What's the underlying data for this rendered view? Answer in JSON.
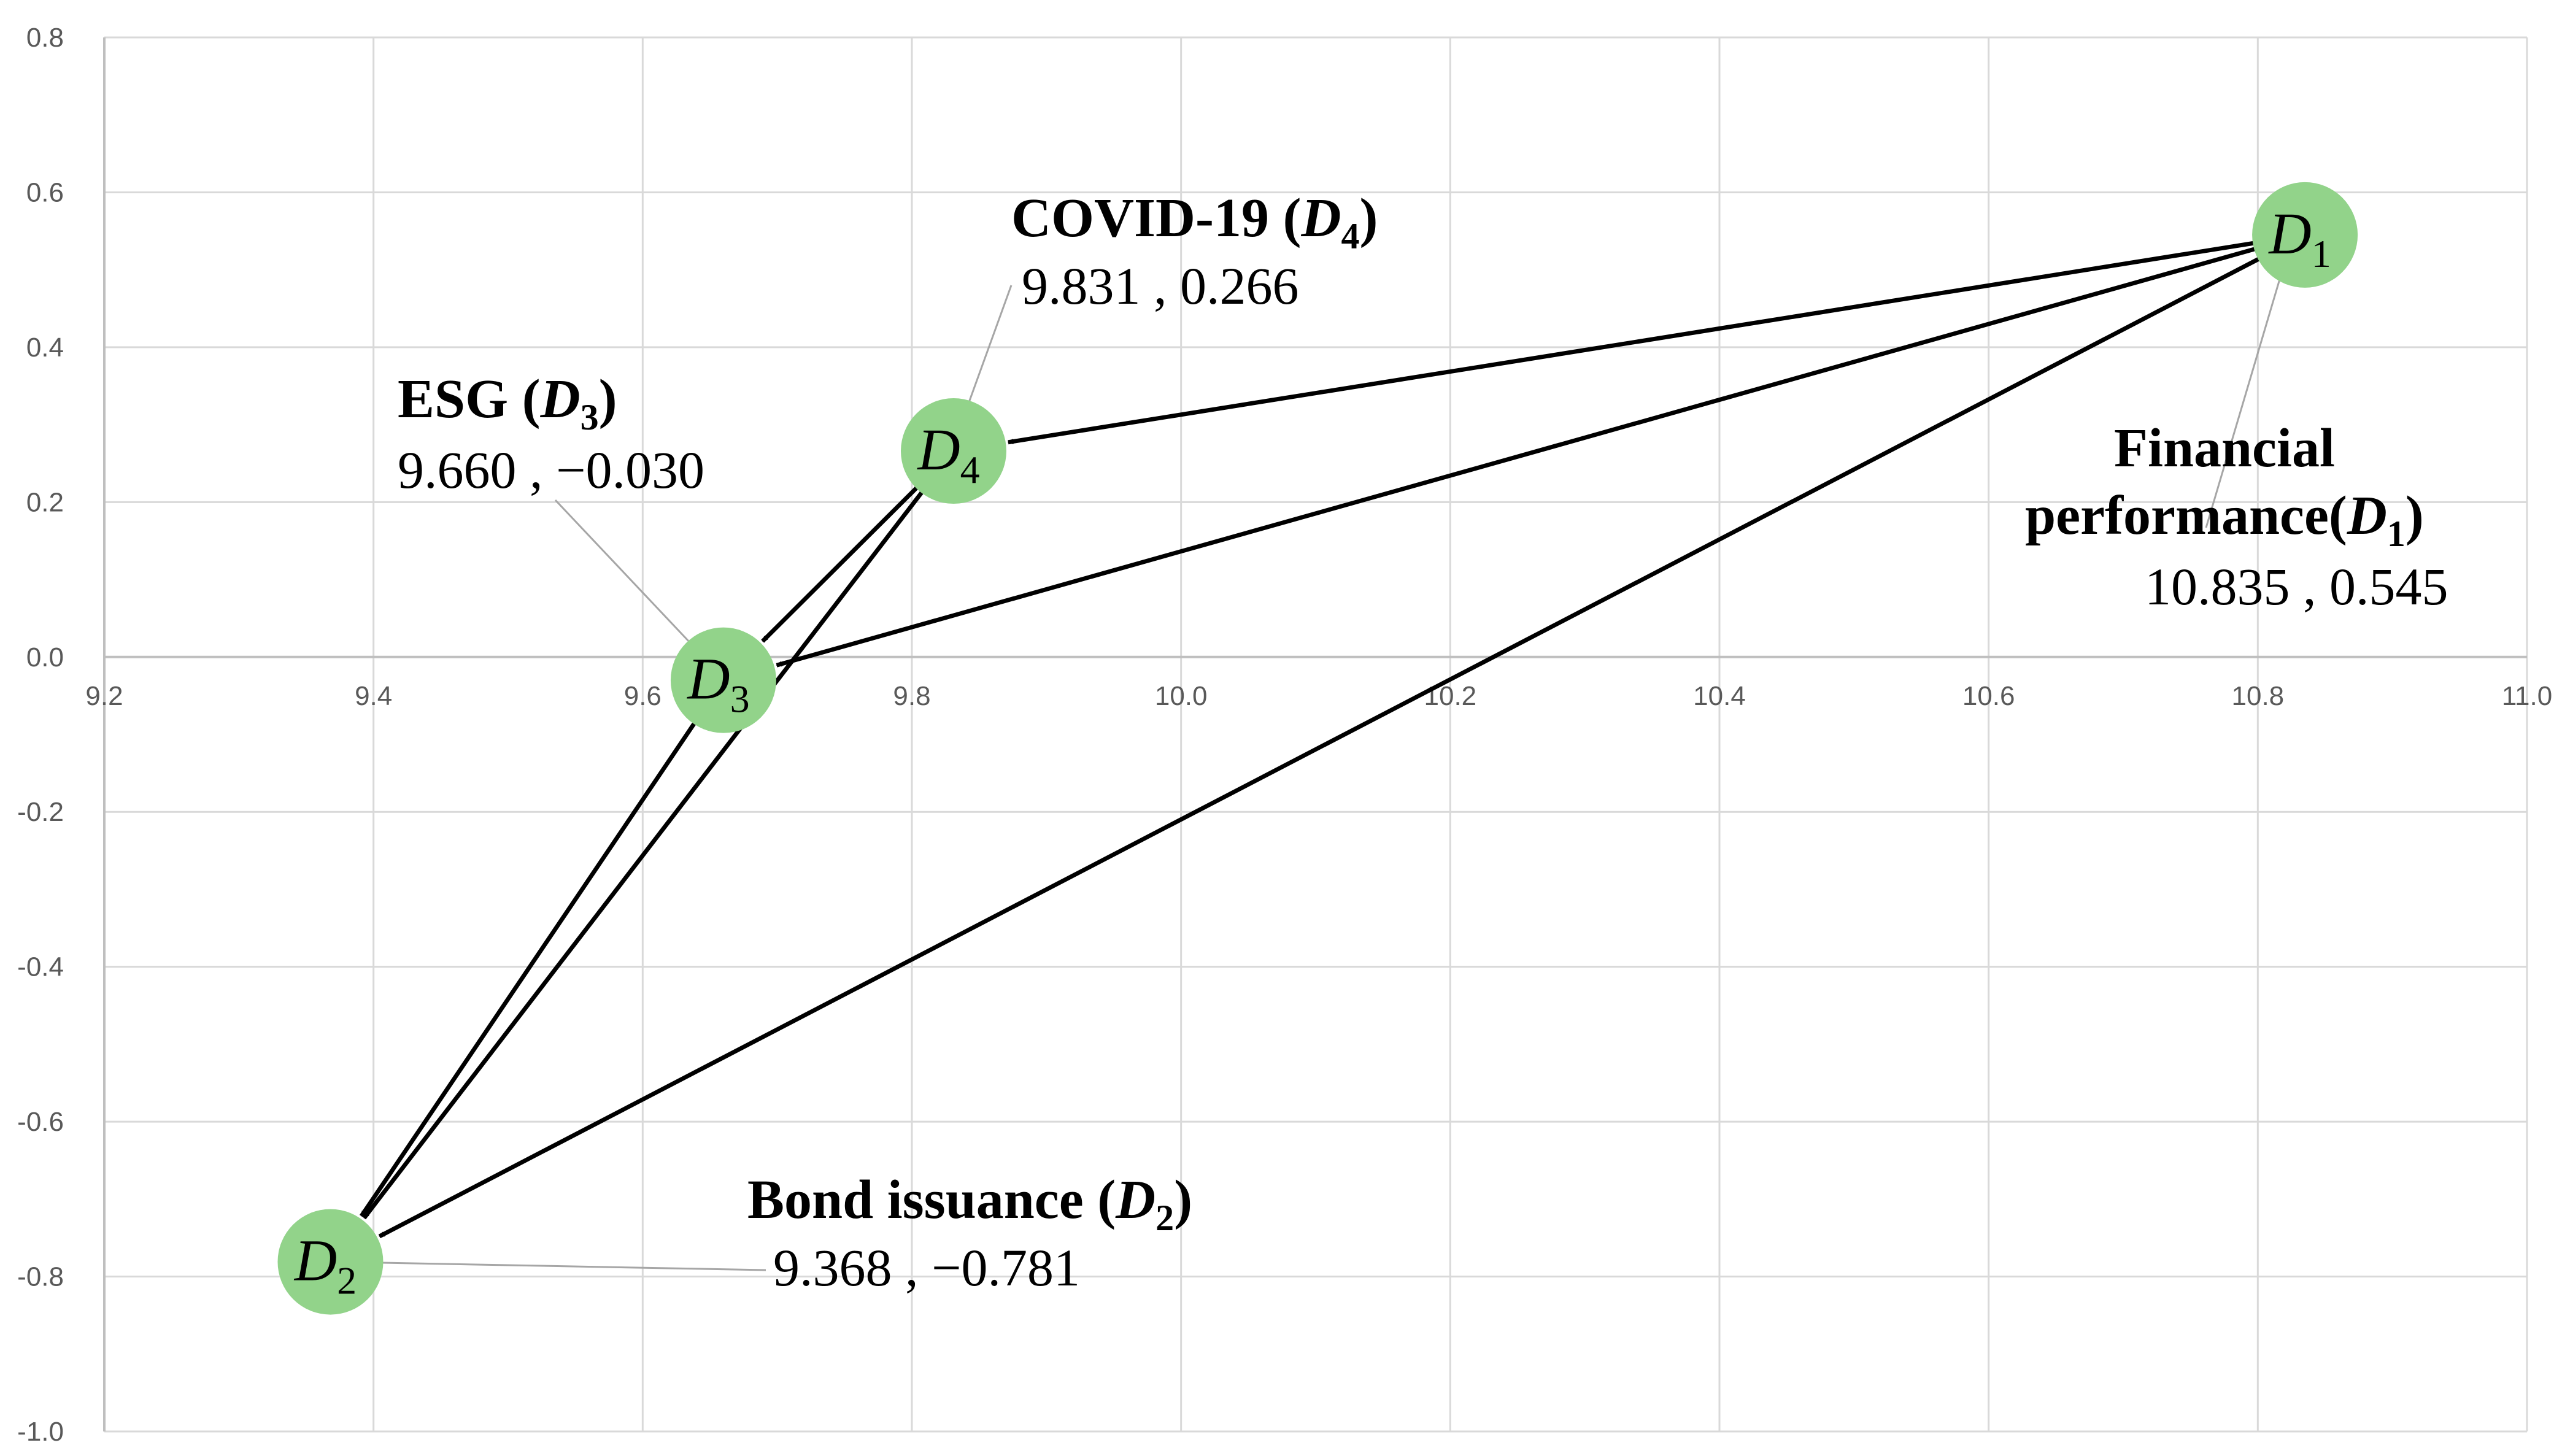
{
  "chart_data": {
    "type": "scatter",
    "title": "",
    "xlabel": "",
    "ylabel": "",
    "xlim": [
      9.2,
      11.0
    ],
    "ylim": [
      -1.0,
      0.8
    ],
    "x_ticks": [
      9.2,
      9.4,
      9.6,
      9.8,
      10.0,
      10.2,
      10.4,
      10.6,
      10.8,
      11.0
    ],
    "y_ticks": [
      0.8,
      0.6,
      0.4,
      0.2,
      0.0,
      -0.2,
      -0.4,
      -0.6,
      -0.8,
      -1.0
    ],
    "x_tick_labels": [
      "9.2",
      "9.4",
      "9.6",
      "9.8",
      "10.0",
      "10.2",
      "10.4",
      "10.6",
      "10.8",
      "11.0"
    ],
    "y_tick_labels": [
      "0.8",
      "0.6",
      "0.4",
      "0.2",
      "0.0",
      "-0.2",
      "-0.4",
      "-0.6",
      "-0.8",
      "-1.0"
    ],
    "grid": true,
    "node_color": "#92d38a",
    "arrow_color": "#000000",
    "nodes": [
      {
        "id": "D1",
        "letter": "D",
        "sub": "1",
        "x": 10.835,
        "y": 0.545,
        "label_lines": [
          {
            "prefix": "Financial",
            "letter": "",
            "sub": "",
            "suffix": ""
          },
          {
            "prefix": "performance(",
            "letter": "D",
            "sub": "1",
            "suffix": ")"
          }
        ],
        "coords": "10.835 , 0.545"
      },
      {
        "id": "D2",
        "letter": "D",
        "sub": "2",
        "x": 9.368,
        "y": -0.781,
        "label_lines": [
          {
            "prefix": "Bond issuance (",
            "letter": "D",
            "sub": "2",
            "suffix": ")"
          }
        ],
        "coords": "9.368 , −0.781"
      },
      {
        "id": "D3",
        "letter": "D",
        "sub": "3",
        "x": 9.66,
        "y": -0.03,
        "label_lines": [
          {
            "prefix": "ESG (",
            "letter": "D",
            "sub": "3",
            "suffix": ")"
          }
        ],
        "coords": "9.660 , −0.030"
      },
      {
        "id": "D4",
        "letter": "D",
        "sub": "4",
        "x": 9.831,
        "y": 0.266,
        "label_lines": [
          {
            "prefix": "COVID-19 (",
            "letter": "D",
            "sub": "4",
            "suffix": ")"
          }
        ],
        "coords": "9.831 , 0.266"
      }
    ],
    "arrows": [
      {
        "from": "D1",
        "to": "D4"
      },
      {
        "from": "D1",
        "to": "D3"
      },
      {
        "from": "D1",
        "to": "D2"
      },
      {
        "from": "D4",
        "to": "D3"
      },
      {
        "from": "D4",
        "to": "D2"
      },
      {
        "from": "D3",
        "to": "D2"
      }
    ]
  }
}
